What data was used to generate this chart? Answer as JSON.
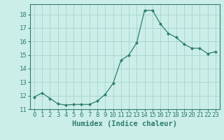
{
  "x": [
    0,
    1,
    2,
    3,
    4,
    5,
    6,
    7,
    8,
    9,
    10,
    11,
    12,
    13,
    14,
    15,
    16,
    17,
    18,
    19,
    20,
    21,
    22,
    23
  ],
  "y": [
    11.9,
    12.2,
    11.8,
    11.4,
    11.3,
    11.35,
    11.35,
    11.35,
    11.6,
    12.1,
    12.9,
    14.6,
    15.0,
    15.9,
    18.3,
    18.3,
    17.3,
    16.6,
    16.3,
    15.8,
    15.5,
    15.5,
    15.1,
    15.25
  ],
  "line_color": "#2e7d6e",
  "marker": "D",
  "marker_size": 2.0,
  "bg_color": "#cceee8",
  "grid_color": "#a8d8d0",
  "xlabel": "Humidex (Indice chaleur)",
  "xlim": [
    -0.5,
    23.5
  ],
  "ylim": [
    11.0,
    18.75
  ],
  "yticks": [
    11,
    12,
    13,
    14,
    15,
    16,
    17,
    18
  ],
  "xticks": [
    0,
    1,
    2,
    3,
    4,
    5,
    6,
    7,
    8,
    9,
    10,
    11,
    12,
    13,
    14,
    15,
    16,
    17,
    18,
    19,
    20,
    21,
    22,
    23
  ],
  "axis_color": "#2e7d6e",
  "tick_label_color": "#2e7d6e",
  "xlabel_color": "#2e7d6e",
  "label_fontsize": 7.5,
  "tick_fontsize": 6.5
}
